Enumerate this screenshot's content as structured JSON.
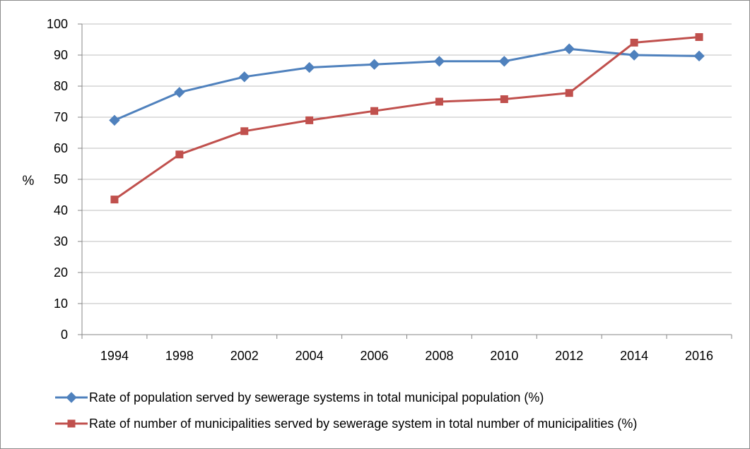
{
  "chart_data": {
    "type": "line",
    "title": "",
    "xlabel": "",
    "ylabel": "%",
    "ylim": [
      0,
      100
    ],
    "y_ticks": [
      0,
      10,
      20,
      30,
      40,
      50,
      60,
      70,
      80,
      90,
      100
    ],
    "categories": [
      "1994",
      "1998",
      "2002",
      "2004",
      "2006",
      "2008",
      "2010",
      "2012",
      "2014",
      "2016"
    ],
    "grid": true,
    "legend_position": "bottom",
    "series": [
      {
        "name": "Rate of population served by sewerage systems in total municipal population (%)",
        "values": [
          69,
          78,
          83,
          86,
          87,
          88,
          88,
          92,
          90,
          89.7
        ],
        "color": "#4f81bd",
        "marker": "diamond"
      },
      {
        "name": "Rate of number of municipalities served by sewerage system in total number of municipalities (%)",
        "values": [
          43.5,
          58,
          65.5,
          69,
          72,
          75,
          75.8,
          77.8,
          94,
          95.8
        ],
        "color": "#c0504d",
        "marker": "square"
      }
    ]
  }
}
